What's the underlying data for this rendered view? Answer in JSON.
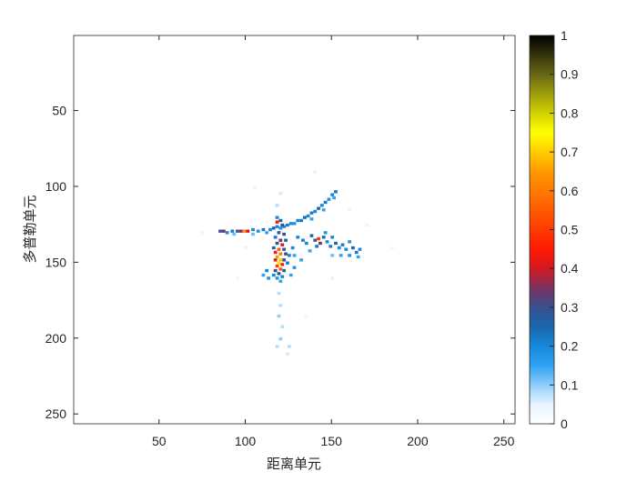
{
  "chart_data": {
    "type": "heatmap",
    "title": "",
    "xlabel": "距离单元",
    "ylabel": "多普勒单元",
    "xlim": [
      0.5,
      256.5
    ],
    "ylim": [
      0.5,
      256.5
    ],
    "y_reversed": true,
    "xticks": [
      50,
      100,
      150,
      200,
      250
    ],
    "yticks": [
      50,
      100,
      150,
      200,
      250
    ],
    "grid": false,
    "colorbar": {
      "limits": [
        0,
        1
      ],
      "ticks": [
        "0",
        "0.1",
        "0.2",
        "0.3",
        "0.4",
        "0.5",
        "0.6",
        "0.7",
        "0.8",
        "0.9",
        "1"
      ],
      "colormap": [
        [
          0,
          "#ffffff"
        ],
        [
          0.05,
          "#e8f4ff"
        ],
        [
          0.1,
          "#8fcdfb"
        ],
        [
          0.15,
          "#2fa2f2"
        ],
        [
          0.2,
          "#1688dc"
        ],
        [
          0.25,
          "#1a66aa"
        ],
        [
          0.3,
          "#37508e"
        ],
        [
          0.35,
          "#7a3360"
        ],
        [
          0.4,
          "#d41820"
        ],
        [
          0.45,
          "#ff1a00"
        ],
        [
          0.55,
          "#ff5a00"
        ],
        [
          0.65,
          "#ff9a00"
        ],
        [
          0.75,
          "#ffff00"
        ],
        [
          0.8,
          "#d2d200"
        ],
        [
          0.9,
          "#676714"
        ],
        [
          1,
          "#000000"
        ]
      ]
    },
    "cells": [
      [
        85,
        129,
        0.3
      ],
      [
        87,
        129,
        0.35
      ],
      [
        89,
        130,
        0.2
      ],
      [
        92,
        129,
        0.22
      ],
      [
        95,
        129,
        0.3
      ],
      [
        97,
        129,
        0.35
      ],
      [
        99,
        129,
        0.62
      ],
      [
        101,
        129,
        0.4
      ],
      [
        104,
        128,
        0.2
      ],
      [
        107,
        129,
        0.18
      ],
      [
        110,
        128,
        0.22
      ],
      [
        112,
        130,
        0.15
      ],
      [
        114,
        128,
        0.2
      ],
      [
        116,
        127,
        0.25
      ],
      [
        118,
        126,
        0.2
      ],
      [
        120,
        127,
        0.18
      ],
      [
        122,
        126,
        0.2
      ],
      [
        124,
        125,
        0.22
      ],
      [
        126,
        124,
        0.2
      ],
      [
        128,
        124,
        0.18
      ],
      [
        130,
        122,
        0.2
      ],
      [
        132,
        122,
        0.22
      ],
      [
        134,
        120,
        0.25
      ],
      [
        136,
        119,
        0.2
      ],
      [
        138,
        117,
        0.22
      ],
      [
        140,
        116,
        0.2
      ],
      [
        142,
        114,
        0.25
      ],
      [
        144,
        112,
        0.2
      ],
      [
        146,
        110,
        0.22
      ],
      [
        148,
        108,
        0.18
      ],
      [
        150,
        105,
        0.2
      ],
      [
        152,
        103,
        0.22
      ],
      [
        151,
        107,
        0.15
      ],
      [
        145,
        115,
        0.15
      ],
      [
        138,
        121,
        0.15
      ],
      [
        104,
        131,
        0.12
      ],
      [
        93,
        131,
        0.12
      ],
      [
        118,
        120,
        0.2
      ],
      [
        120,
        122,
        0.25
      ],
      [
        118,
        123,
        0.45
      ],
      [
        121,
        125,
        0.3
      ],
      [
        119,
        130,
        0.28
      ],
      [
        122,
        131,
        0.3
      ],
      [
        117,
        133,
        0.22
      ],
      [
        120,
        135,
        0.35
      ],
      [
        123,
        135,
        0.25
      ],
      [
        118,
        137,
        0.3
      ],
      [
        121,
        138,
        0.4
      ],
      [
        116,
        140,
        0.25
      ],
      [
        119,
        141,
        0.55
      ],
      [
        122,
        141,
        0.3
      ],
      [
        117,
        143,
        0.45
      ],
      [
        120,
        144,
        0.6
      ],
      [
        123,
        144,
        0.3
      ],
      [
        118,
        146,
        0.65
      ],
      [
        120,
        148,
        0.7
      ],
      [
        117,
        148,
        0.4
      ],
      [
        122,
        148,
        0.3
      ],
      [
        119,
        150,
        0.72
      ],
      [
        121,
        151,
        0.45
      ],
      [
        118,
        152,
        0.5
      ],
      [
        120,
        154,
        0.55
      ],
      [
        117,
        155,
        0.3
      ],
      [
        122,
        155,
        0.25
      ],
      [
        119,
        157,
        0.3
      ],
      [
        121,
        159,
        0.2
      ],
      [
        118,
        160,
        0.18
      ],
      [
        120,
        162,
        0.15
      ],
      [
        116,
        158,
        0.2
      ],
      [
        124,
        150,
        0.22
      ],
      [
        125,
        145,
        0.2
      ],
      [
        112,
        155,
        0.2
      ],
      [
        110,
        158,
        0.15
      ],
      [
        113,
        160,
        0.18
      ],
      [
        126,
        158,
        0.15
      ],
      [
        128,
        153,
        0.18
      ],
      [
        127,
        140,
        0.2
      ],
      [
        119,
        170,
        0.08
      ],
      [
        120,
        178,
        0.08
      ],
      [
        119,
        185,
        0.1
      ],
      [
        121,
        192,
        0.08
      ],
      [
        120,
        200,
        0.1
      ],
      [
        118,
        205,
        0.08
      ],
      [
        125,
        205,
        0.08
      ],
      [
        124,
        210,
        0.06
      ],
      [
        118,
        112,
        0.08
      ],
      [
        120,
        104,
        0.06
      ],
      [
        130,
        133,
        0.2
      ],
      [
        133,
        135,
        0.22
      ],
      [
        135,
        137,
        0.2
      ],
      [
        138,
        132,
        0.25
      ],
      [
        140,
        135,
        0.3
      ],
      [
        142,
        134,
        0.5
      ],
      [
        143,
        137,
        0.35
      ],
      [
        141,
        139,
        0.22
      ],
      [
        145,
        133,
        0.25
      ],
      [
        147,
        136,
        0.2
      ],
      [
        149,
        139,
        0.22
      ],
      [
        150,
        133,
        0.2
      ],
      [
        152,
        137,
        0.25
      ],
      [
        154,
        140,
        0.2
      ],
      [
        156,
        138,
        0.22
      ],
      [
        158,
        141,
        0.2
      ],
      [
        160,
        136,
        0.18
      ],
      [
        162,
        140,
        0.25
      ],
      [
        164,
        143,
        0.22
      ],
      [
        166,
        141,
        0.2
      ],
      [
        160,
        145,
        0.18
      ],
      [
        155,
        145,
        0.15
      ],
      [
        146,
        130,
        0.18
      ],
      [
        137,
        142,
        0.15
      ],
      [
        150,
        145,
        0.12
      ],
      [
        165,
        146,
        0.15
      ],
      [
        128,
        145,
        0.15
      ],
      [
        132,
        148,
        0.15
      ],
      [
        100,
        140,
        0.05
      ],
      [
        140,
        90,
        0.05
      ],
      [
        75,
        130,
        0.04
      ],
      [
        170,
        125,
        0.05
      ],
      [
        150,
        160,
        0.05
      ],
      [
        95,
        160,
        0.04
      ],
      [
        135,
        185,
        0.04
      ],
      [
        105,
        100,
        0.04
      ],
      [
        160,
        115,
        0.05
      ],
      [
        185,
        140,
        0.04
      ]
    ]
  }
}
